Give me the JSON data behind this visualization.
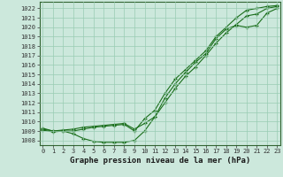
{
  "xlabel": "Graphe pression niveau de la mer (hPa)",
  "hours": [
    0,
    1,
    2,
    3,
    4,
    5,
    6,
    7,
    8,
    9,
    10,
    11,
    12,
    13,
    14,
    15,
    16,
    17,
    18,
    19,
    20,
    21,
    22,
    23
  ],
  "line1": [
    1009.1,
    1008.9,
    1009.0,
    1008.7,
    1008.2,
    1007.9,
    1007.8,
    1007.8,
    1007.8,
    1008.0,
    1009.0,
    1010.5,
    1012.0,
    1013.5,
    1014.8,
    1015.8,
    1017.0,
    1018.3,
    1019.4,
    1020.3,
    1021.2,
    1021.4,
    1022.0,
    1022.2
  ],
  "line2": [
    1009.3,
    1009.0,
    1009.1,
    1009.2,
    1009.4,
    1009.5,
    1009.6,
    1009.7,
    1009.8,
    1009.2,
    1009.8,
    1010.5,
    1012.5,
    1014.0,
    1015.2,
    1016.3,
    1017.2,
    1018.8,
    1019.8,
    1020.2,
    1020.0,
    1020.2,
    1021.5,
    1022.0
  ],
  "line3": [
    1009.2,
    1009.0,
    1009.0,
    1009.0,
    1009.2,
    1009.4,
    1009.5,
    1009.6,
    1009.7,
    1009.0,
    1010.3,
    1011.2,
    1013.0,
    1014.5,
    1015.5,
    1016.5,
    1017.5,
    1019.0,
    1020.0,
    1021.0,
    1021.8,
    1022.0,
    1022.2,
    1022.3
  ],
  "bg_color": "#cce8dc",
  "grid_color": "#99ccb3",
  "line_color": "#1a6e1a",
  "marker": "+",
  "ylim_min": 1007.5,
  "ylim_max": 1022.7,
  "yticks": [
    1008,
    1009,
    1010,
    1011,
    1012,
    1013,
    1014,
    1015,
    1016,
    1017,
    1018,
    1019,
    1020,
    1021,
    1022
  ],
  "xlabel_fontsize": 6.5,
  "tick_fontsize": 5.0
}
